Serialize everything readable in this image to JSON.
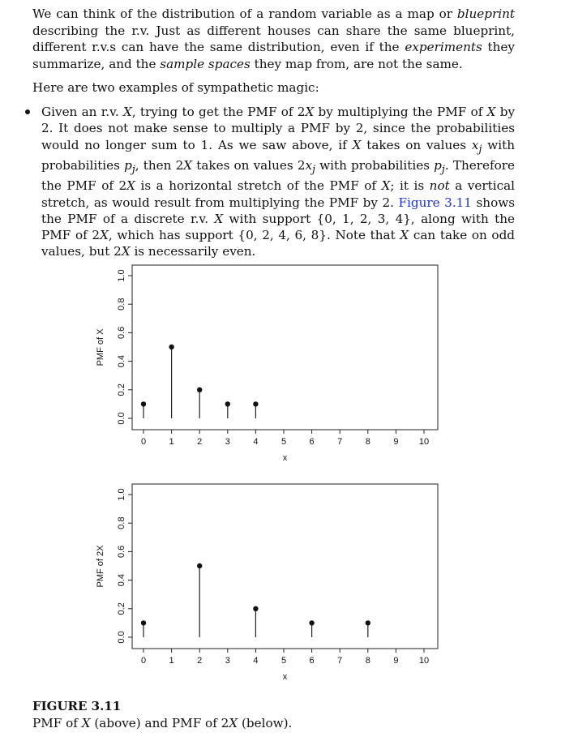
{
  "paragraph1": {
    "t1": "We can think of the distribution of a random variable as a map or ",
    "t2": "blueprint",
    "t3": " describing the r.v. Just as different houses can share the same blueprint, different r.v.s can have the same distribution, even if the ",
    "t4": "experiments",
    "t5": " they summarize, and the ",
    "t6": "sample spaces",
    "t7": " they map from, are not the same."
  },
  "paragraph2": "Here are two examples of sympathetic magic:",
  "bullet": {
    "a1": "Given an r.v. ",
    "a2": "X",
    "a3": ", trying to get the PMF of 2",
    "a4": "X",
    "a5": " by multiplying the PMF of ",
    "a6": "X",
    "a7": " by 2. It does not make sense to multiply a PMF by 2, since the probabilities would no longer sum to 1. As we saw above, if ",
    "a8": "X",
    "a9": " takes on values ",
    "a10": "x",
    "a11": "j",
    "a12": " with probabilities ",
    "a13": "p",
    "a14": "j",
    "a15": ", then 2",
    "a16": "X",
    "a17": " takes on values 2",
    "a18": "x",
    "a19": "j",
    "a20": " with probabilities ",
    "a21": "p",
    "a22": "j",
    "a23": ". Therefore the PMF of 2",
    "a24": "X",
    "a25": " is a horizontal stretch of the PMF of ",
    "a26": "X",
    "a27": "; it is ",
    "a28": "not",
    "a29": " a vertical stretch, as would result from multiplying the PMF by 2. ",
    "a30": "Figure 3.11",
    "a31": " shows the PMF of a discrete r.v. ",
    "a32": "X",
    "a33": " with support {0, 1, 2, 3, 4}, along with the PMF of 2",
    "a34": "X",
    "a35": ", which has support {0, 2, 4, 6, 8}. Note that ",
    "a36": "X",
    "a37": " can take on odd values, but 2",
    "a38": "X",
    "a39": " is necessarily even."
  },
  "caption": {
    "title": "FIGURE 3.11",
    "t1": "PMF of ",
    "t2": "X",
    "t3": " (above) and PMF of 2",
    "t4": "X",
    "t5": " (below)."
  },
  "chart_data": [
    {
      "type": "scatter",
      "style": "stem",
      "xlabel": "x",
      "ylabel": "PMF of X",
      "xlim": [
        0,
        10
      ],
      "ylim": [
        0,
        1
      ],
      "x_ticks": [
        "0",
        "1",
        "2",
        "3",
        "4",
        "5",
        "6",
        "7",
        "8",
        "9",
        "10"
      ],
      "y_ticks": [
        "0.0",
        "0.2",
        "0.4",
        "0.6",
        "0.8",
        "1.0"
      ],
      "x": [
        0,
        1,
        2,
        3,
        4
      ],
      "y": [
        0.1,
        0.5,
        0.2,
        0.1,
        0.1
      ]
    },
    {
      "type": "scatter",
      "style": "stem",
      "xlabel": "x",
      "ylabel": "PMF of 2X",
      "xlim": [
        0,
        10
      ],
      "ylim": [
        0,
        1
      ],
      "x_ticks": [
        "0",
        "1",
        "2",
        "3",
        "4",
        "5",
        "6",
        "7",
        "8",
        "9",
        "10"
      ],
      "y_ticks": [
        "0.0",
        "0.2",
        "0.4",
        "0.6",
        "0.8",
        "1.0"
      ],
      "x": [
        0,
        2,
        4,
        6,
        8
      ],
      "y": [
        0.1,
        0.5,
        0.2,
        0.1,
        0.1
      ]
    }
  ]
}
